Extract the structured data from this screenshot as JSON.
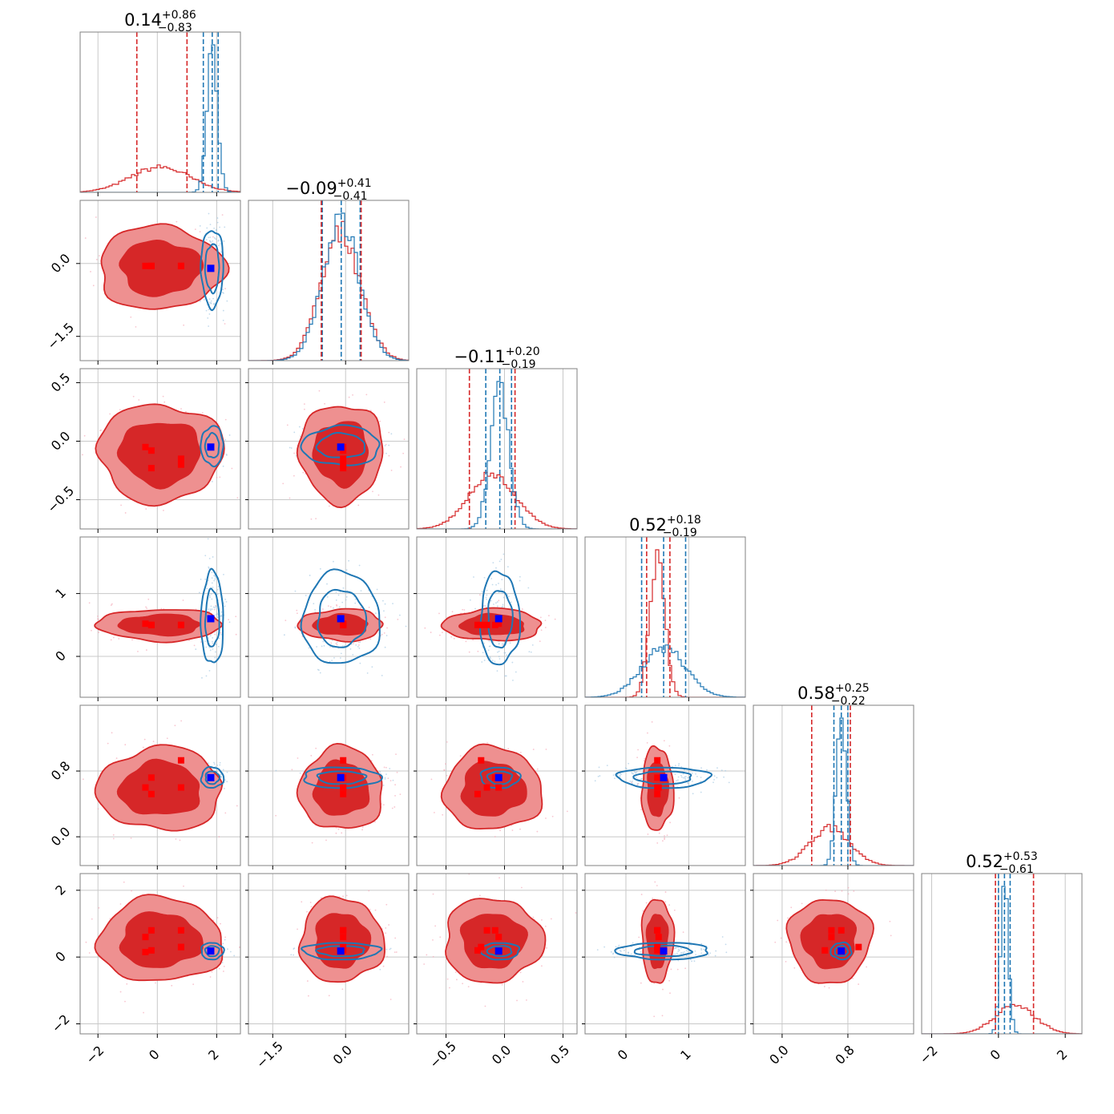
{
  "chart_data": {
    "type": "corner",
    "colors": {
      "red": "#d62728",
      "red_light": "#ee9090",
      "blue": "#1f77b4",
      "marker_red": "#ff0000",
      "marker_blue": "#0000ff",
      "grid": "#c8c8c8",
      "frame": "#808080"
    },
    "params": [
      {
        "range": [
          -2.6,
          2.8
        ],
        "ticks": [
          -2,
          0,
          2
        ],
        "tick_labels": [
          "−2",
          "0",
          "2"
        ],
        "title": {
          "base": "0.14",
          "plus": "+0.86",
          "minus": "−0.83"
        },
        "red_marg": {
          "mean": 0.1,
          "sd": 1.0,
          "lines": [
            -0.69,
            0.14,
            1.0
          ]
        },
        "blue_marg": {
          "mean": 1.85,
          "sd": 0.18,
          "lines": [
            1.55,
            1.85,
            2.05
          ]
        },
        "red_points": [
          -0.4,
          -0.2,
          0.8,
          -0.2,
          0.8,
          -0.4,
          0.8
        ]
      },
      {
        "range": [
          -2.0,
          1.3
        ],
        "ticks": [
          -1.5,
          0.0
        ],
        "tick_labels": [
          "−1.5",
          "0.0"
        ],
        "title": {
          "base": "−0.09",
          "plus": "+0.41",
          "minus": "−0.41"
        },
        "red_marg": {
          "mean": -0.09,
          "sd": 0.41,
          "lines": [
            -0.5,
            -0.09,
            0.32
          ]
        },
        "blue_marg": {
          "mean": -0.09,
          "sd": 0.38,
          "lines": [
            -0.48,
            -0.09,
            0.3
          ]
        },
        "red_points": [
          -0.05,
          -0.05,
          -0.05,
          -0.05,
          -0.05
        ]
      },
      {
        "range": [
          -0.75,
          0.62
        ],
        "ticks": [
          -0.5,
          0.0,
          0.5
        ],
        "tick_labels": [
          "−0.5",
          "0.0",
          "0.5"
        ],
        "title": {
          "base": "−0.11",
          "plus": "+0.20",
          "minus": "−0.19"
        },
        "red_marg": {
          "mean": -0.1,
          "sd": 0.2,
          "lines": [
            -0.3,
            -0.11,
            0.09
          ]
        },
        "blue_marg": {
          "mean": -0.04,
          "sd": 0.08,
          "lines": [
            -0.16,
            -0.04,
            0.06
          ]
        },
        "red_points": [
          -0.05,
          -0.08,
          -0.2,
          -0.23,
          -0.15
        ]
      },
      {
        "range": [
          -0.65,
          1.9
        ],
        "ticks": [
          0,
          1
        ],
        "tick_labels": [
          "0",
          "1"
        ],
        "title": {
          "base": "0.52",
          "plus": "+0.18",
          "minus": "−0.19"
        },
        "red_marg": {
          "mean": 0.5,
          "sd": 0.12,
          "lines": [
            0.33,
            0.52,
            0.7
          ]
        },
        "blue_marg": {
          "mean": 0.6,
          "sd": 0.35,
          "lines": [
            0.25,
            0.6,
            0.95
          ]
        },
        "red_points": [
          0.52,
          0.5,
          0.5,
          0.5,
          0.5
        ]
      },
      {
        "range": [
          -0.35,
          1.6
        ],
        "ticks": [
          0.0,
          0.8
        ],
        "tick_labels": [
          "0.0",
          "0.8"
        ],
        "title": {
          "base": "0.58",
          "plus": "+0.25",
          "minus": "−0.22"
        },
        "red_marg": {
          "mean": 0.58,
          "sd": 0.24,
          "lines": [
            0.36,
            0.58,
            0.83
          ]
        },
        "blue_marg": {
          "mean": 0.72,
          "sd": 0.06,
          "lines": [
            0.63,
            0.72,
            0.8
          ]
        },
        "red_points": [
          0.6,
          0.72,
          0.93,
          0.52,
          0.6
        ]
      },
      {
        "range": [
          -2.3,
          2.5
        ],
        "ticks": [
          -2,
          0,
          2
        ],
        "tick_labels": [
          "−2",
          "0",
          "2"
        ],
        "title": {
          "base": "0.52",
          "plus": "+0.53",
          "minus": "−0.61"
        },
        "red_marg": {
          "mean": 0.5,
          "sd": 0.6,
          "lines": [
            -0.09,
            0.52,
            1.05
          ]
        },
        "blue_marg": {
          "mean": 0.18,
          "sd": 0.12,
          "lines": [
            0.0,
            0.18,
            0.35
          ]
        },
        "red_points": [
          0.6,
          0.8,
          0.3,
          0.2,
          0.8,
          0.15,
          0.3
        ]
      }
    ],
    "truth_blue": [
      1.8,
      -0.1,
      -0.05,
      0.6,
      0.72,
      0.18
    ],
    "grid": true
  }
}
